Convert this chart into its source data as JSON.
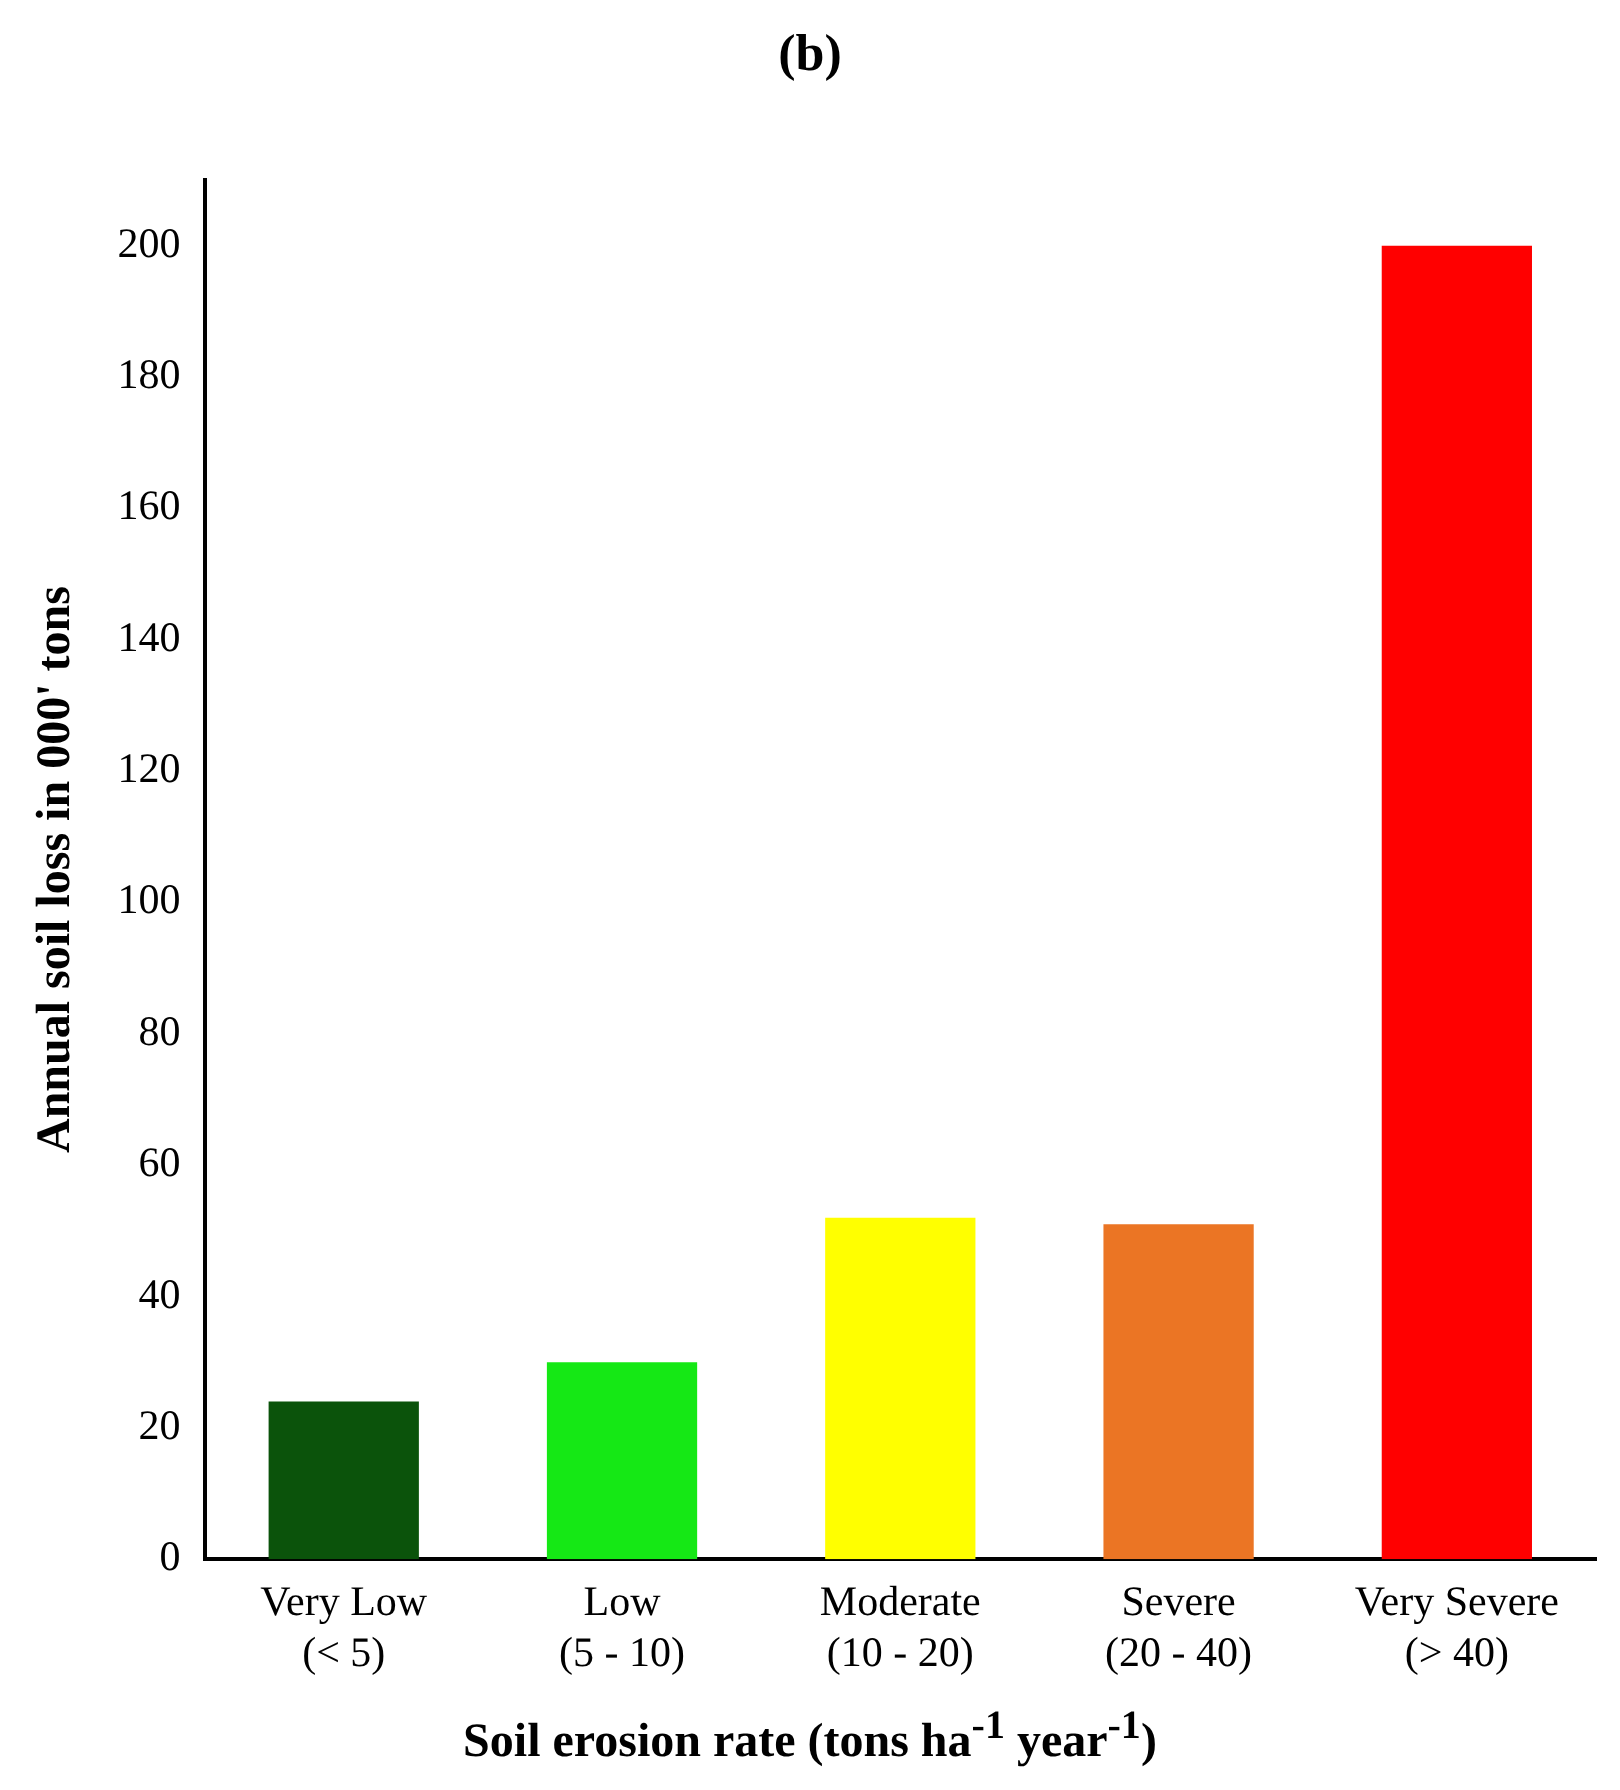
{
  "chart_data": {
    "type": "bar",
    "title": "(b)",
    "xlabel": "Soil erosion rate (tons ha$^{-1}$ year$^{-1}$)",
    "ylabel": "Annual soil loss in 000' tons",
    "categories": [
      "Very Low\n(< 5)",
      "Low\n(5 - 10)",
      "Moderate\n(10 - 20)",
      "Severe\n(20 - 40)",
      "Very Severe\n(> 40)"
    ],
    "values": [
      24,
      30,
      52,
      51,
      200
    ],
    "colors": [
      "#0b530b",
      "#15e815",
      "#ffff00",
      "#eb7524",
      "#ff0000"
    ],
    "ylim": [
      0,
      210
    ],
    "yticks": [
      0,
      20,
      40,
      60,
      80,
      100,
      120,
      140,
      160,
      180,
      200
    ],
    "grid": false,
    "legend": false
  }
}
